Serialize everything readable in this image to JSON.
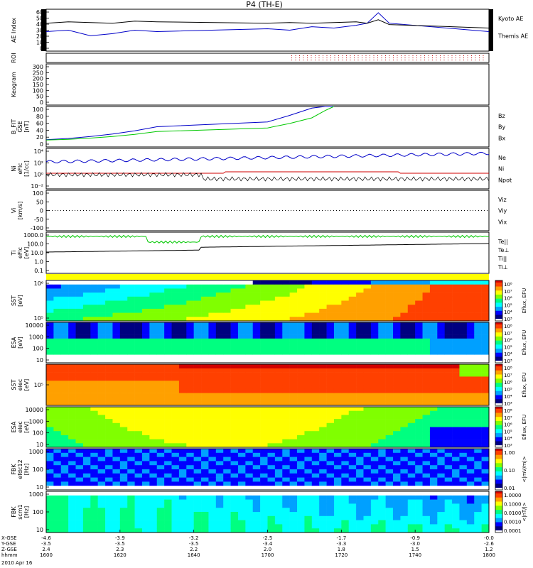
{
  "title": "P4 (TH-E)",
  "panels": [
    {
      "id": "ae",
      "ylabel": "AE Index",
      "yticks": [
        "60",
        "50",
        "40",
        "30",
        "20",
        "10",
        "0"
      ],
      "legend": [
        {
          "text": "Kyoto AE",
          "color": "#0000c8"
        },
        {
          "text": "Themis AE",
          "color": "#000000"
        }
      ]
    },
    {
      "id": "roi",
      "ylabel": "ROI",
      "yticks": [],
      "legend": []
    },
    {
      "id": "keogram",
      "ylabel": "Keogram",
      "yticks": [
        "300",
        "250",
        "200",
        "150",
        "100",
        "50",
        "0"
      ],
      "legend": []
    },
    {
      "id": "bfit",
      "ylabel": "B_FIT\nGSE\n[nT]",
      "yticks": [
        "100",
        "80",
        "60",
        "40",
        "20",
        "0"
      ],
      "legend": [
        {
          "text": "Bz",
          "color": "#d00000"
        },
        {
          "text": "By",
          "color": "#00c800"
        },
        {
          "text": "Bx",
          "color": "#0000c8"
        }
      ]
    },
    {
      "id": "ni",
      "ylabel": "Ni\neFlc\n[1/cc]",
      "yticks": [
        "10⁴",
        "10²",
        "10⁰",
        "10⁻²"
      ],
      "legend": [
        {
          "text": "Ne",
          "color": "#d00000"
        },
        {
          "text": "Ni",
          "color": "#000000"
        },
        {
          "text": "Npot",
          "color": "#0000c8"
        }
      ]
    },
    {
      "id": "vi",
      "ylabel": "Vi\n[km/s]",
      "yticks": [
        "100",
        "50",
        "0",
        "-50",
        "-100"
      ],
      "legend": [
        {
          "text": "Viz",
          "color": "#d00000"
        },
        {
          "text": "Viy",
          "color": "#00c800"
        },
        {
          "text": "Vix",
          "color": "#0000c8"
        }
      ]
    },
    {
      "id": "ti",
      "ylabel": "Ti\neFlc\n[eV]",
      "yticks": [
        "1000.0",
        "100.0",
        "10.0",
        "1.0",
        "0.1"
      ],
      "legend": [
        {
          "text": "Te||",
          "color": "#000000"
        },
        {
          "text": "Te⊥",
          "color": "#d00000"
        },
        {
          "text": "Ti||",
          "color": "#00c800"
        },
        {
          "text": "Ti⊥",
          "color": "#0000c8"
        }
      ]
    },
    {
      "id": "sst1",
      "ylabel": "SST\n[eV]",
      "yticks": [
        "10⁶",
        "10⁵"
      ],
      "legend": []
    },
    {
      "id": "esa1",
      "ylabel": "ESA\n[eV]",
      "yticks": [
        "10000",
        "1000",
        "100",
        "10"
      ],
      "legend": []
    },
    {
      "id": "sst2",
      "ylabel": "SST\nelec\n[eV]",
      "yticks": [
        "10⁵"
      ],
      "legend": []
    },
    {
      "id": "esa2",
      "ylabel": "ESA\nelec\n[eV]",
      "yticks": [
        "10000",
        "1000",
        "100",
        "10"
      ],
      "legend": []
    },
    {
      "id": "fbk1",
      "ylabel": "FBK\nefdc12\n[Hz]",
      "yticks": [
        "1000",
        "100",
        "10"
      ],
      "legend": []
    },
    {
      "id": "fbk2",
      "ylabel": "FBK\nscm1\n[Hz]",
      "yticks": [
        "1000",
        "100",
        "10"
      ],
      "legend": []
    }
  ],
  "colorbars": [
    {
      "label": "Eflux, EFU",
      "ticks": [
        "10⁸",
        "10⁷",
        "10⁶",
        "10⁵",
        "10⁴",
        "10³"
      ]
    },
    {
      "label": "Eflux, EFU",
      "ticks": [
        "10⁸",
        "10⁷",
        "10⁶",
        "10⁵",
        "10⁴",
        "10³"
      ]
    },
    {
      "label": "Eflux, EFU",
      "ticks": [
        "10⁸",
        "10⁷",
        "10⁶",
        "10⁵",
        "10⁴",
        "10³"
      ]
    },
    {
      "label": "Eflux, EFU",
      "ticks": [
        "10⁸",
        "10⁷",
        "10⁶",
        "10⁵",
        "10⁴",
        "10³"
      ]
    },
    {
      "label": "<|mV/m|>",
      "ticks": [
        "1.00",
        "0.10",
        "0.01"
      ]
    },
    {
      "label": "<|nT/|>",
      "ticks": [
        "1.0000",
        "0.1000",
        "0.0100",
        "0.0010",
        "0.0001"
      ]
    }
  ],
  "xaxis": {
    "row_labels": [
      "X-GSE",
      "Y-GSE",
      "Z-GSE",
      "hhmm"
    ],
    "date_label": "2010 Apr 16",
    "columns": [
      {
        "x": "-4.6",
        "y": "-3.5",
        "z": "2.4",
        "hhmm": "1600"
      },
      {
        "x": "-3.9",
        "y": "-3.5",
        "z": "2.3",
        "hhmm": "1620"
      },
      {
        "x": "-3.2",
        "y": "-3.5",
        "z": "2.2",
        "hhmm": "1640"
      },
      {
        "x": "-2.5",
        "y": "-3.4",
        "z": "2.0",
        "hhmm": "1700"
      },
      {
        "x": "-1.7",
        "y": "-3.3",
        "z": "1.8",
        "hhmm": "1720"
      },
      {
        "x": "-0.9",
        "y": "-3.0",
        "z": "1.5",
        "hhmm": "1740"
      },
      {
        "x": "-0.0",
        "y": "-2.6",
        "z": "1.2",
        "hhmm": "1800"
      }
    ]
  },
  "chart_data": [
    {
      "type": "line",
      "id": "ae",
      "x": [
        1600,
        1610,
        1620,
        1630,
        1640,
        1650,
        1700,
        1710,
        1720,
        1730,
        1740,
        1745,
        1750,
        1755,
        1800
      ],
      "series": [
        {
          "name": "Kyoto AE",
          "color": "#0000c8",
          "values": [
            28,
            30,
            22,
            25,
            30,
            28,
            32,
            30,
            35,
            33,
            37,
            40,
            55,
            40,
            28
          ]
        },
        {
          "name": "Themis AE",
          "color": "#000000",
          "values": [
            40,
            42,
            41,
            40,
            43,
            42,
            40,
            41,
            40,
            41,
            42,
            40,
            45,
            38,
            33
          ]
        }
      ],
      "ylim": [
        0,
        60
      ]
    },
    {
      "type": "line",
      "id": "bfit",
      "x": [
        1600,
        1610,
        1620,
        1630,
        1640,
        1650,
        1700,
        1710,
        1720,
        1726,
        1730
      ],
      "series": [
        {
          "name": "Bx",
          "color": "#0000c8",
          "values": [
            18,
            21,
            26,
            32,
            40,
            50,
            62,
            78,
            96,
            100,
            100
          ]
        },
        {
          "name": "By",
          "color": "#00c800",
          "values": [
            17,
            19,
            22,
            26,
            31,
            38,
            47,
            58,
            72,
            90,
            100
          ]
        }
      ],
      "ylim": [
        0,
        100
      ]
    },
    {
      "type": "heatmap",
      "id": "spectrograms",
      "colorscale": [
        "#ffffff",
        "#000080",
        "#0000ff",
        "#00a0ff",
        "#00ffff",
        "#00ff80",
        "#80ff00",
        "#ffff00",
        "#ffa000",
        "#ff4000",
        "#d00000"
      ]
    }
  ]
}
